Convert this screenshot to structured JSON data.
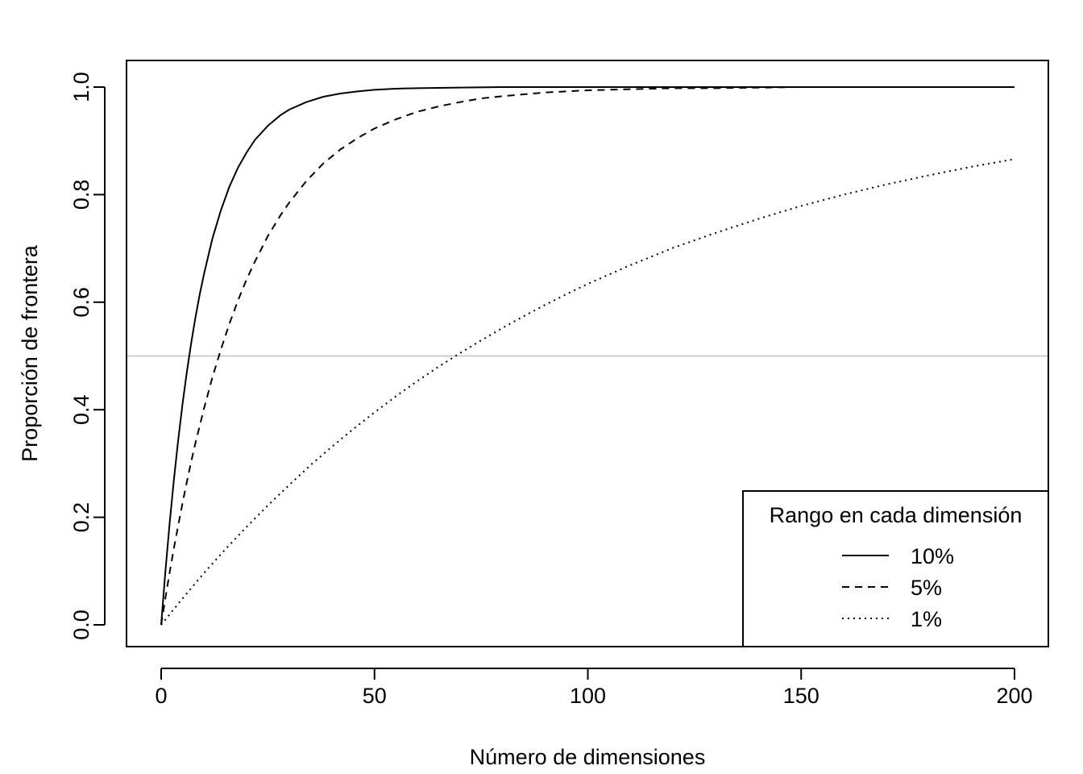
{
  "chart_data": {
    "type": "line",
    "title": "",
    "xlabel": "Número de dimensiones",
    "ylabel": "Proporción de frontera",
    "xlim": [
      0,
      200
    ],
    "ylim": [
      0,
      1
    ],
    "xticks": [
      0,
      50,
      100,
      150,
      200
    ],
    "xtick_labels": [
      "0",
      "50",
      "100",
      "150",
      "200"
    ],
    "yticks": [
      0,
      0.2,
      0.4,
      0.6,
      0.8,
      1.0
    ],
    "ytick_labels": [
      "0.0",
      "0.2",
      "0.4",
      "0.6",
      "0.8",
      "1.0"
    ],
    "grid": false,
    "reference_line": {
      "y": 0.5,
      "color": "#cccccc"
    },
    "legend": {
      "title": "Rango en cada dimensión",
      "position": "bottom-right"
    },
    "series": [
      {
        "name": "10%",
        "line_style": "solid",
        "color": "#000000",
        "x": [
          0,
          1,
          2,
          3,
          4,
          5,
          6,
          7,
          8,
          9,
          10,
          12,
          14,
          16,
          18,
          20,
          22,
          25,
          28,
          30,
          34,
          38,
          42,
          46,
          50,
          55,
          60,
          70,
          80,
          90,
          100,
          110,
          120,
          130,
          140,
          150,
          160,
          170,
          180,
          190,
          200
        ],
        "y": [
          0.0,
          0.1,
          0.19,
          0.271,
          0.344,
          0.41,
          0.469,
          0.522,
          0.57,
          0.613,
          0.651,
          0.718,
          0.771,
          0.815,
          0.85,
          0.878,
          0.902,
          0.928,
          0.948,
          0.958,
          0.972,
          0.982,
          0.988,
          0.992,
          0.995,
          0.997,
          0.998,
          0.999,
          1.0,
          1.0,
          1.0,
          1.0,
          1.0,
          1.0,
          1.0,
          1.0,
          1.0,
          1.0,
          1.0,
          1.0,
          1.0
        ]
      },
      {
        "name": "5%",
        "line_style": "dashed",
        "color": "#000000",
        "x": [
          0,
          1,
          2,
          3,
          4,
          5,
          6,
          7,
          8,
          10,
          12,
          14,
          16,
          18,
          20,
          22,
          25,
          28,
          30,
          34,
          38,
          42,
          46,
          50,
          55,
          60,
          65,
          70,
          75,
          80,
          90,
          100,
          110,
          120,
          130,
          140,
          150,
          160,
          170,
          180,
          190,
          200
        ],
        "y": [
          0.0,
          0.05,
          0.098,
          0.143,
          0.185,
          0.226,
          0.265,
          0.302,
          0.337,
          0.401,
          0.46,
          0.512,
          0.56,
          0.603,
          0.642,
          0.676,
          0.723,
          0.762,
          0.785,
          0.825,
          0.858,
          0.884,
          0.905,
          0.923,
          0.94,
          0.954,
          0.964,
          0.972,
          0.979,
          0.983,
          0.99,
          0.994,
          0.996,
          0.998,
          0.998,
          0.999,
          1.0,
          1.0,
          1.0,
          1.0,
          1.0,
          1.0
        ]
      },
      {
        "name": "1%",
        "line_style": "dotted",
        "color": "#000000",
        "x": [
          0,
          5,
          10,
          15,
          20,
          25,
          30,
          35,
          40,
          45,
          50,
          55,
          60,
          65,
          70,
          75,
          80,
          85,
          90,
          95,
          100,
          110,
          120,
          130,
          140,
          150,
          160,
          170,
          180,
          190,
          200
        ],
        "y": [
          0.0,
          0.049,
          0.096,
          0.14,
          0.182,
          0.222,
          0.26,
          0.297,
          0.331,
          0.364,
          0.395,
          0.425,
          0.453,
          0.48,
          0.505,
          0.529,
          0.552,
          0.574,
          0.595,
          0.615,
          0.634,
          0.669,
          0.701,
          0.729,
          0.755,
          0.779,
          0.8,
          0.819,
          0.836,
          0.852,
          0.866
        ]
      }
    ]
  }
}
